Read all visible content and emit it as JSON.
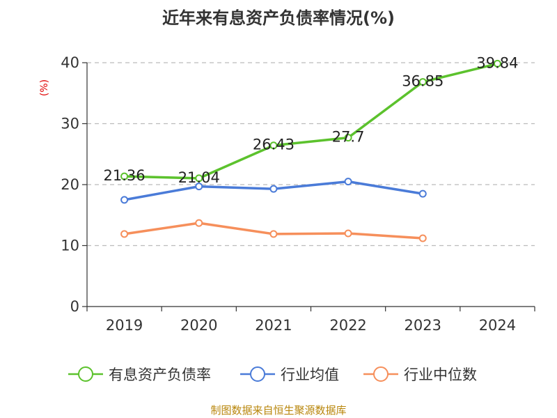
{
  "title": "近年来有息资产负债率情况(%)",
  "source": "制图数据来自恒生聚源数据库",
  "colors": {
    "有息资产负债率": "#5cc22d",
    "行业均值": "#4a7bd8",
    "行业中位数": "#f68f5b",
    "grid": "#bbbbbb",
    "axis": "#333333"
  },
  "chart_data": {
    "type": "line",
    "title": "近年来有息资产负债率情况(%)",
    "ylabel": "(%)",
    "xlabel": "",
    "ylim": [
      0,
      40
    ],
    "yticks": [
      0,
      10,
      20,
      30,
      40
    ],
    "grid": "horizontal dashed",
    "legend_position": "bottom",
    "categories": [
      "2019",
      "2020",
      "2021",
      "2022",
      "2023",
      "2024"
    ],
    "series": [
      {
        "name": "有息资产负债率",
        "values": [
          21.36,
          21.04,
          26.43,
          27.7,
          36.85,
          39.84
        ],
        "labels": [
          "21.36",
          "21.04",
          "26.43",
          "27.7",
          "36.85",
          "39.84"
        ]
      },
      {
        "name": "行业均值",
        "values": [
          17.5,
          19.7,
          19.3,
          20.5,
          18.5,
          null
        ]
      },
      {
        "name": "行业中位数",
        "values": [
          11.9,
          13.7,
          11.9,
          12.0,
          11.2,
          null
        ]
      }
    ]
  }
}
